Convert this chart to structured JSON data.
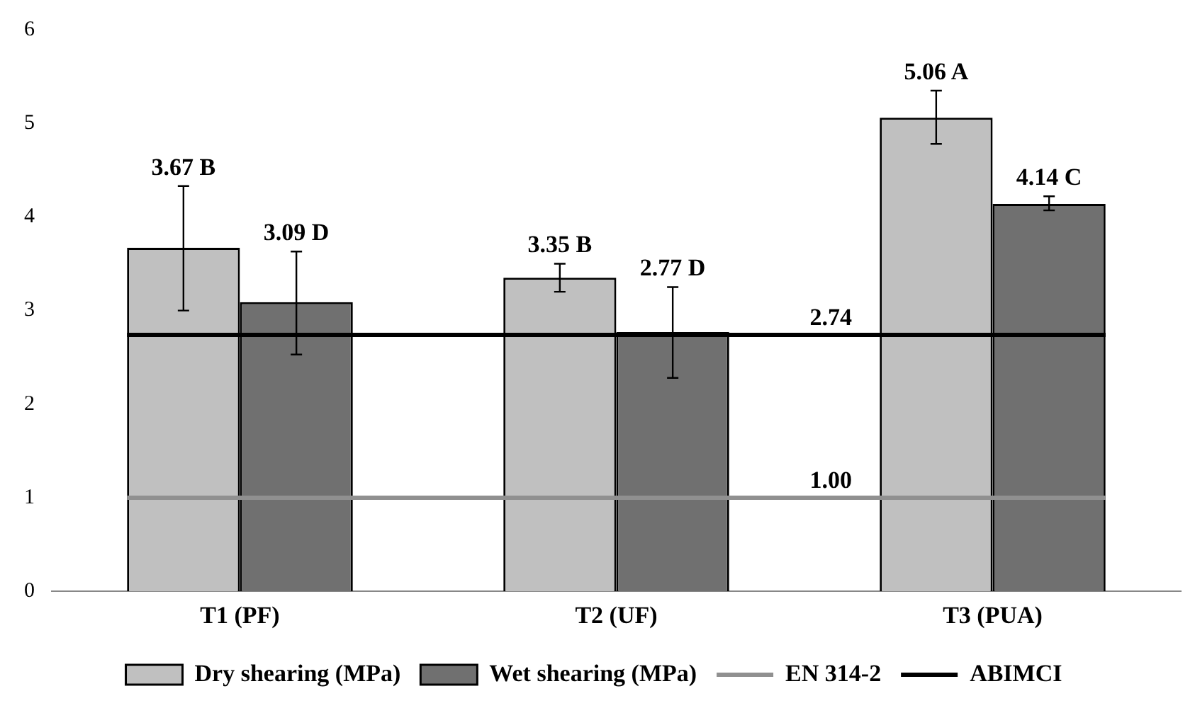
{
  "chart_data": {
    "type": "bar",
    "categories": [
      "T1 (PF)",
      "T2 (UF)",
      "T3 (PUA)"
    ],
    "series": [
      {
        "name": "Dry shearing (MPa)",
        "color": "#c0c0c0",
        "values": [
          3.67,
          3.35,
          5.06
        ],
        "errors": [
          [
            3.0,
            4.33
          ],
          [
            3.2,
            3.5
          ],
          [
            4.78,
            5.35
          ]
        ],
        "value_labels": [
          "3.67 B",
          "3.35 B",
          "5.06 A"
        ]
      },
      {
        "name": "Wet shearing (MPa)",
        "color": "#707070",
        "values": [
          3.09,
          2.77,
          4.14
        ],
        "errors": [
          [
            2.53,
            3.63
          ],
          [
            2.28,
            3.25
          ],
          [
            4.07,
            4.22
          ]
        ],
        "value_labels": [
          "3.09 D",
          "2.77 D",
          "4.14 C"
        ]
      }
    ],
    "ref_lines": [
      {
        "axis": "y",
        "value": 1.0,
        "label": "EN 314-2",
        "color": "#909090"
      },
      {
        "axis": "y",
        "value": 2.74,
        "label": "ABIMCI",
        "color": "#000000"
      }
    ],
    "annotations": [
      {
        "text": "2.74",
        "y": 2.74
      },
      {
        "text": "1.00",
        "y": 1.0
      }
    ],
    "ylim": [
      0,
      6
    ],
    "yticks": [
      0,
      1,
      2,
      3,
      4,
      5,
      6
    ],
    "grid": false,
    "legend": "bottom"
  }
}
